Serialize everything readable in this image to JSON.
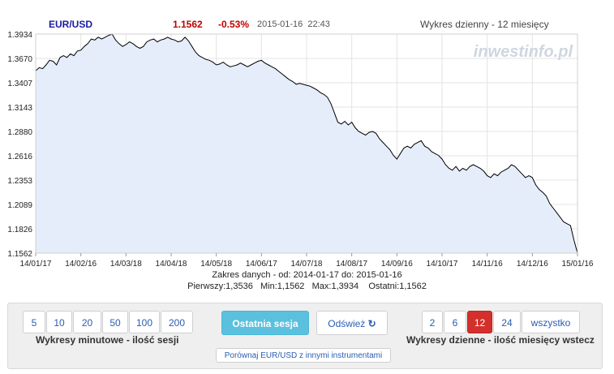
{
  "header": {
    "symbol": "EUR/USD",
    "price": "1.1562",
    "change": "-0.53%",
    "datetime": "2015-01-16  22:43",
    "chart_label": "Wykres dzienny - 12 miesięcy",
    "watermark": "inwestinfo.pl"
  },
  "chart_data": {
    "type": "area",
    "title": "",
    "xlabel": "",
    "ylabel": "",
    "ylim": [
      1.1562,
      1.3934
    ],
    "yticks": [
      "1.3934",
      "1.3670",
      "1.3407",
      "1.3143",
      "1.2880",
      "1.2616",
      "1.2353",
      "1.2089",
      "1.1826",
      "1.1562"
    ],
    "xticks": [
      "14/01/17",
      "14/02/16",
      "14/03/18",
      "14/04/18",
      "14/05/18",
      "14/06/17",
      "14/07/18",
      "14/08/17",
      "14/09/16",
      "14/10/17",
      "14/11/16",
      "14/12/16",
      "15/01/16"
    ],
    "grid": true,
    "x_start": "14/01/17",
    "x_end": "15/01/16",
    "series": [
      {
        "values": [
          1.3536,
          1.357,
          1.356,
          1.36,
          1.365,
          1.364,
          1.36,
          1.368,
          1.37,
          1.368,
          1.372,
          1.37,
          1.375,
          1.376,
          1.38,
          1.383,
          1.388,
          1.387,
          1.39,
          1.388,
          1.39,
          1.392,
          1.3934,
          1.387,
          1.383,
          1.38,
          1.382,
          1.385,
          1.383,
          1.38,
          1.378,
          1.38,
          1.385,
          1.387,
          1.388,
          1.385,
          1.387,
          1.388,
          1.39,
          1.388,
          1.387,
          1.385,
          1.386,
          1.39,
          1.386,
          1.38,
          1.374,
          1.37,
          1.368,
          1.366,
          1.365,
          1.363,
          1.36,
          1.361,
          1.363,
          1.36,
          1.358,
          1.359,
          1.36,
          1.362,
          1.36,
          1.358,
          1.36,
          1.362,
          1.364,
          1.365,
          1.362,
          1.36,
          1.358,
          1.356,
          1.353,
          1.35,
          1.347,
          1.344,
          1.342,
          1.339,
          1.34,
          1.339,
          1.338,
          1.337,
          1.335,
          1.333,
          1.33,
          1.328,
          1.325,
          1.318,
          1.308,
          1.298,
          1.296,
          1.299,
          1.295,
          1.298,
          1.292,
          1.288,
          1.286,
          1.284,
          1.287,
          1.288,
          1.286,
          1.28,
          1.276,
          1.272,
          1.268,
          1.262,
          1.258,
          1.264,
          1.27,
          1.272,
          1.27,
          1.274,
          1.276,
          1.278,
          1.272,
          1.27,
          1.266,
          1.264,
          1.262,
          1.258,
          1.252,
          1.248,
          1.246,
          1.25,
          1.245,
          1.248,
          1.246,
          1.25,
          1.252,
          1.25,
          1.248,
          1.245,
          1.24,
          1.238,
          1.242,
          1.24,
          1.244,
          1.246,
          1.248,
          1.252,
          1.25,
          1.246,
          1.242,
          1.238,
          1.24,
          1.238,
          1.23,
          1.225,
          1.222,
          1.218,
          1.21,
          1.205,
          1.2,
          1.195,
          1.19,
          1.188,
          1.186,
          1.17,
          1.1562
        ]
      }
    ]
  },
  "stats": {
    "range": "Zakres danych - od: 2014-01-17 do: 2015-01-16",
    "first": "Pierwszy:1,3536",
    "min": "Min:1,1562",
    "max": "Max:1,3934",
    "last": "Ostatni:1,1562"
  },
  "controls": {
    "minute_buttons": [
      "5",
      "10",
      "20",
      "50",
      "100",
      "200"
    ],
    "minute_label": "Wykresy minutowe - ilość sesji",
    "last_session": "Ostatnia sesja",
    "refresh": "Odśwież",
    "compare": "Porównaj EUR/USD z innymi instrumentami",
    "daily_buttons": [
      "2",
      "6",
      "12",
      "24",
      "wszystko"
    ],
    "daily_selected": "12",
    "daily_label": "Wykresy dzienne - ilość miesięcy wstecz"
  },
  "colors": {
    "price": "#c00000",
    "symbol": "#1a1aa6",
    "fill": "#e4edf9",
    "line": "#000000",
    "selected": "#d3302b",
    "accent_button": "#5bc0de"
  }
}
